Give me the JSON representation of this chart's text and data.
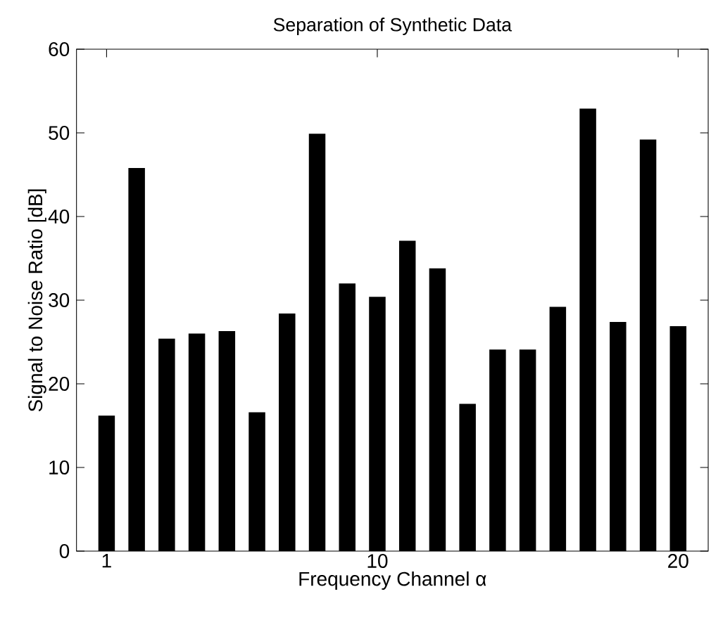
{
  "chart_data": {
    "type": "bar",
    "title": "Separation of Synthetic Data",
    "xlabel": "Frequency Channel α",
    "ylabel": "Signal to Noise Ratio [dB]",
    "x": [
      1,
      2,
      3,
      4,
      5,
      6,
      7,
      8,
      9,
      10,
      11,
      12,
      13,
      14,
      15,
      16,
      17,
      18,
      19,
      20
    ],
    "values": [
      16.2,
      45.8,
      25.4,
      26.0,
      26.3,
      16.6,
      28.4,
      49.9,
      32.0,
      30.4,
      37.1,
      33.8,
      17.6,
      24.1,
      24.1,
      29.2,
      52.9,
      27.4,
      49.2,
      26.9
    ],
    "color": "#000000",
    "xlim": [
      0,
      21
    ],
    "xticks": [
      1,
      10,
      20
    ],
    "ylim": [
      0,
      60
    ],
    "yticks": [
      0,
      10,
      20,
      30,
      40,
      50,
      60
    ]
  }
}
